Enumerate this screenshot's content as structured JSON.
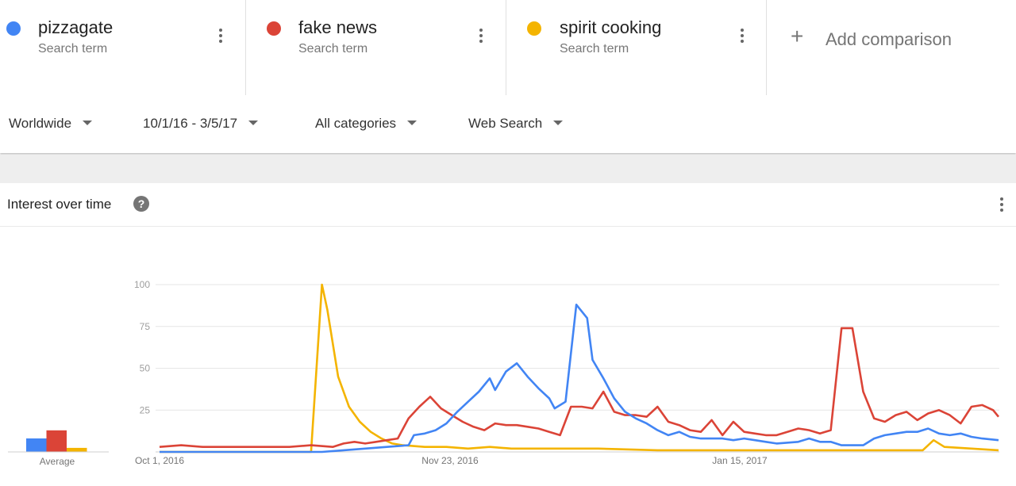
{
  "terms": [
    {
      "name": "pizzagate",
      "sub": "Search term",
      "color": "#4285f4"
    },
    {
      "name": "fake news",
      "sub": "Search term",
      "color": "#db4437"
    },
    {
      "name": "spirit cooking",
      "sub": "Search term",
      "color": "#f4b400"
    }
  ],
  "add_comparison": "Add comparison",
  "filters": {
    "region": "Worldwide",
    "dates": "10/1/16 - 3/5/17",
    "category": "All categories",
    "source": "Web Search"
  },
  "card": {
    "title": "Interest over time",
    "help": "?"
  },
  "chart_data": {
    "type": "line",
    "x_start": "2016-10-01",
    "x_end": "2017-03-05",
    "x_ticks": [
      "Oct 1, 2016",
      "Nov 23, 2016",
      "Jan 15, 2017"
    ],
    "y_ticks": [
      100,
      75,
      50,
      25
    ],
    "ylim": [
      0,
      100
    ],
    "average_label": "Average",
    "averages": [
      {
        "name": "pizzagate",
        "value": 10
      },
      {
        "name": "fake news",
        "value": 16
      },
      {
        "name": "spirit cooking",
        "value": 3
      }
    ],
    "series": [
      {
        "name": "pizzagate",
        "color": "#4285f4",
        "points": [
          [
            "2016-10-01",
            0
          ],
          [
            "2016-10-31",
            0
          ],
          [
            "2016-11-04",
            1
          ],
          [
            "2016-11-08",
            2
          ],
          [
            "2016-11-12",
            3
          ],
          [
            "2016-11-16",
            4
          ],
          [
            "2016-11-17",
            10
          ],
          [
            "2016-11-19",
            11
          ],
          [
            "2016-11-21",
            13
          ],
          [
            "2016-11-23",
            17
          ],
          [
            "2016-11-25",
            24
          ],
          [
            "2016-11-27",
            30
          ],
          [
            "2016-11-29",
            36
          ],
          [
            "2016-12-01",
            44
          ],
          [
            "2016-12-02",
            37
          ],
          [
            "2016-12-04",
            48
          ],
          [
            "2016-12-06",
            53
          ],
          [
            "2016-12-08",
            45
          ],
          [
            "2016-12-10",
            38
          ],
          [
            "2016-12-12",
            32
          ],
          [
            "2016-12-13",
            26
          ],
          [
            "2016-12-15",
            30
          ],
          [
            "2016-12-17",
            88
          ],
          [
            "2016-12-19",
            80
          ],
          [
            "2016-12-20",
            55
          ],
          [
            "2016-12-22",
            44
          ],
          [
            "2016-12-24",
            32
          ],
          [
            "2016-12-26",
            24
          ],
          [
            "2016-12-28",
            20
          ],
          [
            "2016-12-30",
            17
          ],
          [
            "2017-01-01",
            13
          ],
          [
            "2017-01-03",
            10
          ],
          [
            "2017-01-05",
            12
          ],
          [
            "2017-01-07",
            9
          ],
          [
            "2017-01-09",
            8
          ],
          [
            "2017-01-13",
            8
          ],
          [
            "2017-01-15",
            7
          ],
          [
            "2017-01-17",
            8
          ],
          [
            "2017-01-19",
            7
          ],
          [
            "2017-01-21",
            6
          ],
          [
            "2017-01-23",
            5
          ],
          [
            "2017-01-27",
            6
          ],
          [
            "2017-01-29",
            8
          ],
          [
            "2017-01-31",
            6
          ],
          [
            "2017-02-02",
            6
          ],
          [
            "2017-02-04",
            4
          ],
          [
            "2017-02-08",
            4
          ],
          [
            "2017-02-10",
            8
          ],
          [
            "2017-02-12",
            10
          ],
          [
            "2017-02-14",
            11
          ],
          [
            "2017-02-16",
            12
          ],
          [
            "2017-02-18",
            12
          ],
          [
            "2017-02-20",
            14
          ],
          [
            "2017-02-22",
            11
          ],
          [
            "2017-02-24",
            10
          ],
          [
            "2017-02-26",
            11
          ],
          [
            "2017-02-28",
            9
          ],
          [
            "2017-03-02",
            8
          ],
          [
            "2017-03-05",
            7
          ]
        ]
      },
      {
        "name": "fake news",
        "color": "#db4437",
        "points": [
          [
            "2016-10-01",
            3
          ],
          [
            "2016-10-05",
            4
          ],
          [
            "2016-10-09",
            3
          ],
          [
            "2016-10-13",
            3
          ],
          [
            "2016-10-17",
            3
          ],
          [
            "2016-10-21",
            3
          ],
          [
            "2016-10-25",
            3
          ],
          [
            "2016-10-29",
            4
          ],
          [
            "2016-11-02",
            3
          ],
          [
            "2016-11-04",
            5
          ],
          [
            "2016-11-06",
            6
          ],
          [
            "2016-11-08",
            5
          ],
          [
            "2016-11-10",
            6
          ],
          [
            "2016-11-12",
            7
          ],
          [
            "2016-11-14",
            8
          ],
          [
            "2016-11-16",
            20
          ],
          [
            "2016-11-18",
            27
          ],
          [
            "2016-11-20",
            33
          ],
          [
            "2016-11-22",
            26
          ],
          [
            "2016-11-24",
            22
          ],
          [
            "2016-11-26",
            18
          ],
          [
            "2016-11-28",
            15
          ],
          [
            "2016-11-30",
            13
          ],
          [
            "2016-12-02",
            17
          ],
          [
            "2016-12-04",
            16
          ],
          [
            "2016-12-06",
            16
          ],
          [
            "2016-12-08",
            15
          ],
          [
            "2016-12-10",
            14
          ],
          [
            "2016-12-12",
            12
          ],
          [
            "2016-12-14",
            10
          ],
          [
            "2016-12-16",
            27
          ],
          [
            "2016-12-18",
            27
          ],
          [
            "2016-12-20",
            26
          ],
          [
            "2016-12-22",
            36
          ],
          [
            "2016-12-24",
            24
          ],
          [
            "2016-12-26",
            22
          ],
          [
            "2016-12-28",
            22
          ],
          [
            "2016-12-30",
            21
          ],
          [
            "2017-01-01",
            27
          ],
          [
            "2017-01-03",
            18
          ],
          [
            "2017-01-05",
            16
          ],
          [
            "2017-01-07",
            13
          ],
          [
            "2017-01-09",
            12
          ],
          [
            "2017-01-11",
            19
          ],
          [
            "2017-01-13",
            10
          ],
          [
            "2017-01-15",
            18
          ],
          [
            "2017-01-17",
            12
          ],
          [
            "2017-01-19",
            11
          ],
          [
            "2017-01-21",
            10
          ],
          [
            "2017-01-23",
            10
          ],
          [
            "2017-01-25",
            12
          ],
          [
            "2017-01-27",
            14
          ],
          [
            "2017-01-29",
            13
          ],
          [
            "2017-01-31",
            11
          ],
          [
            "2017-02-02",
            13
          ],
          [
            "2017-02-04",
            74
          ],
          [
            "2017-02-06",
            74
          ],
          [
            "2017-02-08",
            36
          ],
          [
            "2017-02-10",
            20
          ],
          [
            "2017-02-12",
            18
          ],
          [
            "2017-02-14",
            22
          ],
          [
            "2017-02-16",
            24
          ],
          [
            "2017-02-18",
            19
          ],
          [
            "2017-02-20",
            23
          ],
          [
            "2017-02-22",
            25
          ],
          [
            "2017-02-24",
            22
          ],
          [
            "2017-02-26",
            17
          ],
          [
            "2017-02-28",
            27
          ],
          [
            "2017-03-02",
            28
          ],
          [
            "2017-03-04",
            25
          ],
          [
            "2017-03-05",
            21
          ]
        ]
      },
      {
        "name": "spirit cooking",
        "color": "#f4b400",
        "points": [
          [
            "2016-10-01",
            0
          ],
          [
            "2016-10-29",
            0
          ],
          [
            "2016-10-31",
            100
          ],
          [
            "2016-11-01",
            85
          ],
          [
            "2016-11-03",
            45
          ],
          [
            "2016-11-05",
            27
          ],
          [
            "2016-11-07",
            18
          ],
          [
            "2016-11-09",
            12
          ],
          [
            "2016-11-11",
            8
          ],
          [
            "2016-11-13",
            5
          ],
          [
            "2016-11-15",
            4
          ],
          [
            "2016-11-19",
            3
          ],
          [
            "2016-11-23",
            3
          ],
          [
            "2016-11-27",
            2
          ],
          [
            "2016-12-01",
            3
          ],
          [
            "2016-12-05",
            2
          ],
          [
            "2016-12-13",
            2
          ],
          [
            "2016-12-21",
            2
          ],
          [
            "2017-01-01",
            1
          ],
          [
            "2017-02-01",
            1
          ],
          [
            "2017-02-19",
            1
          ],
          [
            "2017-02-21",
            7
          ],
          [
            "2017-02-23",
            3
          ],
          [
            "2017-03-05",
            1
          ]
        ]
      }
    ]
  }
}
